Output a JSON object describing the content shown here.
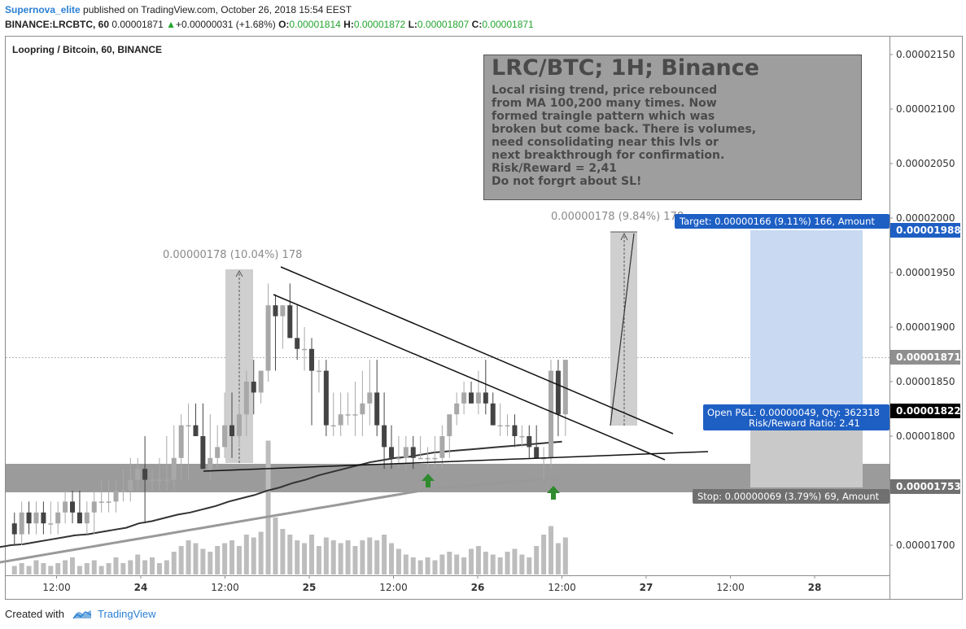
{
  "header": {
    "author": "Supernova_elite",
    "published": " published on TradingView.com, October 26, 2018 15:54 EEST",
    "symbol": "BINANCE:LRCBTC, 60",
    "last": " 0.00001871 ",
    "change_arrow": "▲",
    "change": "+0.00000031 (+1.68%)",
    "o_label": " O:",
    "o": "0.00001814",
    "h_label": " H:",
    "h": "0.00001872",
    "l_label": " L:",
    "l": "0.00001807",
    "c_label": " C:",
    "c": "0.00001871"
  },
  "legend": "Loopring / Bitcoin, 60, BINANCE",
  "note": {
    "title": "LRC/BTC; 1H; Binance",
    "lines": [
      "Local rising trend, price rebounced",
      "from MA 100,200 many times. Now",
      "formed traingle pattern which was",
      "broken but come back. There is volumes,",
      "need consolidating near this lvls or",
      "next breakthrough for confirmation.",
      "Risk/Reward = 2,41",
      "Do not forgrt about SL!"
    ]
  },
  "labels": {
    "measure1": "0.00000178 (10.04%) 178",
    "measure2": "0.00000178 (9.84%) 178",
    "target": "Target: 0.00000166 (9.11%) 166, Amount",
    "pnl1": "Open P&L: 0.00000049, Qty: 362318",
    "pnl2": "Risk/Reward Ratio: 2.41",
    "stop": "Stop: 0.00000069 (3.79%) 69, Amount"
  },
  "price_tags": {
    "target": "0.00001988",
    "last": "0.00001871",
    "entry": "0.00001822",
    "stop": "0.00001753"
  },
  "footer": {
    "created": "Created with",
    "brand": "TradingView"
  },
  "colors": {
    "up_candle": "#a8a8a8",
    "down_candle": "#444444",
    "ma100": "#333333",
    "ma200": "#999999",
    "support_zone": "#7a7a7a",
    "target_zone": "#c8d9f1",
    "stop_zone": "#c9c9c9",
    "target_tag": "#1e5fc4",
    "stop_tag": "#707070",
    "change_up": "#23a52e",
    "author": "#2a7fd4"
  },
  "chart_data": {
    "type": "candlestick",
    "title": "Loopring / Bitcoin, 60, BINANCE",
    "y_ticks": [
      "0.00002150",
      "0.00002100",
      "0.00002050",
      "0.00002000",
      "0.00001950",
      "0.00001900",
      "0.00001850",
      "0.00001800",
      "0.00001750",
      "0.00001700"
    ],
    "y_tick_values": [
      2.15e-05,
      2.1e-05,
      2.05e-05,
      2e-05,
      1.95e-05,
      1.9e-05,
      1.85e-05,
      1.8e-05,
      1.75e-05,
      1.7e-05
    ],
    "x_ticks": [
      "12:00",
      "24",
      "12:00",
      "25",
      "12:00",
      "26",
      "12:00",
      "27",
      "12:00",
      "28"
    ],
    "x_tick_hours": [
      12,
      24,
      36,
      48,
      60,
      72,
      84,
      96,
      108,
      120
    ],
    "ylim": [
      1.675e-05,
      2.18e-05
    ],
    "xlim": [
      5,
      130
    ],
    "x_unit": "hours since Oct 23 00:00",
    "open": [
      1.72e-05,
      1.71e-05,
      1.73e-05,
      1.72e-05,
      1.73e-05,
      1.72e-05,
      1.72e-05,
      1.73e-05,
      1.74e-05,
      1.73e-05,
      1.72e-05,
      1.73e-05,
      1.74e-05,
      1.74e-05,
      1.74e-05,
      1.75e-05,
      1.75e-05,
      1.76e-05,
      1.77e-05,
      1.76e-05,
      1.76e-05,
      1.76e-05,
      1.76e-05,
      1.78e-05,
      1.81e-05,
      1.81e-05,
      1.8e-05,
      1.77e-05,
      1.78e-05,
      1.79e-05,
      1.81e-05,
      1.8e-05,
      1.82e-05,
      1.85e-05,
      1.84e-05,
      1.86e-05,
      1.92e-05,
      1.91e-05,
      1.92e-05,
      1.89e-05,
      1.88e-05,
      1.88e-05,
      1.86e-05,
      1.86e-05,
      1.81e-05,
      1.81e-05,
      1.82e-05,
      1.82e-05,
      1.82e-05,
      1.83e-05,
      1.84e-05,
      1.81e-05,
      1.79e-05,
      1.78e-05,
      1.78e-05,
      1.79e-05,
      1.78e-05,
      1.78e-05,
      1.78e-05,
      1.78e-05,
      1.8e-05,
      1.82e-05,
      1.83e-05,
      1.84e-05,
      1.83e-05,
      1.84e-05,
      1.83e-05,
      1.81e-05,
      1.81e-05,
      1.81e-05,
      1.8e-05,
      1.8e-05,
      1.79e-05,
      1.78e-05,
      1.78e-05,
      1.86e-05,
      1.82e-05
    ],
    "high": [
      1.73e-05,
      1.74e-05,
      1.74e-05,
      1.74e-05,
      1.74e-05,
      1.74e-05,
      1.74e-05,
      1.75e-05,
      1.75e-05,
      1.75e-05,
      1.74e-05,
      1.75e-05,
      1.76e-05,
      1.76e-05,
      1.76e-05,
      1.77e-05,
      1.78e-05,
      1.78e-05,
      1.8e-05,
      1.77e-05,
      1.78e-05,
      1.8e-05,
      1.81e-05,
      1.82e-05,
      1.83e-05,
      1.83e-05,
      1.83e-05,
      1.82e-05,
      1.81e-05,
      1.84e-05,
      1.84e-05,
      1.83e-05,
      1.86e-05,
      1.87e-05,
      1.86e-05,
      1.94e-05,
      1.93e-05,
      1.92e-05,
      1.94e-05,
      1.92e-05,
      1.9e-05,
      1.89e-05,
      1.87e-05,
      1.87e-05,
      1.84e-05,
      1.84e-05,
      1.84e-05,
      1.85e-05,
      1.86e-05,
      1.87e-05,
      1.87e-05,
      1.84e-05,
      1.81e-05,
      1.8e-05,
      1.8e-05,
      1.8e-05,
      1.8e-05,
      1.79e-05,
      1.8e-05,
      1.81e-05,
      1.82e-05,
      1.84e-05,
      1.85e-05,
      1.85e-05,
      1.86e-05,
      1.87e-05,
      1.84e-05,
      1.83e-05,
      1.82e-05,
      1.82e-05,
      1.81e-05,
      1.81e-05,
      1.81e-05,
      1.79e-05,
      1.87e-05,
      1.87e-05,
      1.87e-05
    ],
    "low": [
      1.7e-05,
      1.7e-05,
      1.71e-05,
      1.71e-05,
      1.71e-05,
      1.71e-05,
      1.71e-05,
      1.72e-05,
      1.72e-05,
      1.72e-05,
      1.71e-05,
      1.71e-05,
      1.73e-05,
      1.73e-05,
      1.73e-05,
      1.74e-05,
      1.74e-05,
      1.75e-05,
      1.72e-05,
      1.75e-05,
      1.75e-05,
      1.75e-05,
      1.75e-05,
      1.76e-05,
      1.76e-05,
      1.8e-05,
      1.77e-05,
      1.76e-05,
      1.77e-05,
      1.78e-05,
      1.78e-05,
      1.79e-05,
      1.8e-05,
      1.82e-05,
      1.83e-05,
      1.85e-05,
      1.86e-05,
      1.88e-05,
      1.89e-05,
      1.87e-05,
      1.86e-05,
      1.81e-05,
      1.84e-05,
      1.8e-05,
      1.8e-05,
      1.8e-05,
      1.81e-05,
      1.8e-05,
      1.8e-05,
      1.81e-05,
      1.8e-05,
      1.77e-05,
      1.77e-05,
      1.77e-05,
      1.77e-05,
      1.77e-05,
      1.78e-05,
      1.77e-05,
      1.77e-05,
      1.77e-05,
      1.78e-05,
      1.81e-05,
      1.82e-05,
      1.83e-05,
      1.82e-05,
      1.82e-05,
      1.81e-05,
      1.8e-05,
      1.8e-05,
      1.79e-05,
      1.79e-05,
      1.78e-05,
      1.78e-05,
      1.76e-05,
      1.77e-05,
      1.8e-05,
      1.8e-05
    ],
    "close": [
      1.71e-05,
      1.73e-05,
      1.72e-05,
      1.73e-05,
      1.72e-05,
      1.72e-05,
      1.73e-05,
      1.74e-05,
      1.73e-05,
      1.72e-05,
      1.73e-05,
      1.74e-05,
      1.74e-05,
      1.74e-05,
      1.75e-05,
      1.75e-05,
      1.76e-05,
      1.77e-05,
      1.76e-05,
      1.76e-05,
      1.76e-05,
      1.76e-05,
      1.78e-05,
      1.81e-05,
      1.81e-05,
      1.8e-05,
      1.77e-05,
      1.78e-05,
      1.79e-05,
      1.81e-05,
      1.8e-05,
      1.82e-05,
      1.85e-05,
      1.84e-05,
      1.86e-05,
      1.92e-05,
      1.91e-05,
      1.92e-05,
      1.89e-05,
      1.88e-05,
      1.88e-05,
      1.86e-05,
      1.86e-05,
      1.81e-05,
      1.81e-05,
      1.82e-05,
      1.82e-05,
      1.82e-05,
      1.83e-05,
      1.84e-05,
      1.81e-05,
      1.79e-05,
      1.78e-05,
      1.78e-05,
      1.79e-05,
      1.78e-05,
      1.78e-05,
      1.78e-05,
      1.78e-05,
      1.8e-05,
      1.82e-05,
      1.83e-05,
      1.84e-05,
      1.83e-05,
      1.84e-05,
      1.83e-05,
      1.81e-05,
      1.81e-05,
      1.81e-05,
      1.8e-05,
      1.8e-05,
      1.79e-05,
      1.78e-05,
      1.78e-05,
      1.86e-05,
      1.82e-05,
      1.87e-05
    ],
    "volume": [
      3,
      4,
      3,
      5,
      4,
      3,
      4,
      5,
      6,
      3,
      4,
      5,
      3,
      4,
      6,
      4,
      5,
      7,
      5,
      6,
      4,
      5,
      8,
      10,
      12,
      11,
      9,
      8,
      10,
      11,
      12,
      10,
      14,
      13,
      15,
      47,
      20,
      16,
      14,
      12,
      11,
      14,
      10,
      13,
      12,
      11,
      12,
      10,
      12,
      13,
      12,
      14,
      11,
      9,
      7,
      6,
      5,
      6,
      5,
      7,
      8,
      7,
      6,
      9,
      10,
      8,
      7,
      6,
      8,
      9,
      7,
      6,
      10,
      14,
      17,
      11,
      13
    ],
    "ma100": [
      1.69e-05,
      1.695e-05,
      1.698e-05,
      1.7e-05,
      1.701e-05,
      1.703e-05,
      1.705e-05,
      1.707e-05,
      1.709e-05,
      1.71e-05,
      1.712e-05,
      1.714e-05,
      1.716e-05,
      1.72e-05,
      1.722e-05,
      1.725e-05,
      1.728e-05,
      1.73e-05,
      1.733e-05,
      1.736e-05,
      1.74e-05,
      1.743e-05,
      1.746e-05,
      1.75e-05,
      1.753e-05,
      1.757e-05,
      1.76e-05,
      1.764e-05,
      1.767e-05,
      1.77e-05,
      1.773e-05,
      1.776e-05,
      1.778e-05,
      1.78e-05,
      1.781e-05,
      1.783e-05,
      1.785e-05,
      1.786e-05,
      1.787e-05,
      1.788e-05,
      1.789e-05,
      1.79e-05,
      1.791e-05,
      1.792e-05,
      1.793e-05,
      1.794e-05,
      1.795e-05
    ],
    "ma200": [
      1.68e-05,
      1.682e-05,
      1.684e-05,
      1.686e-05,
      1.688e-05,
      1.69e-05,
      1.692e-05,
      1.694e-05,
      1.696e-05,
      1.698e-05,
      1.7e-05,
      1.702e-05,
      1.704e-05,
      1.706e-05,
      1.708e-05,
      1.71e-05,
      1.712e-05,
      1.714e-05,
      1.716e-05,
      1.718e-05,
      1.72e-05,
      1.722e-05,
      1.724e-05,
      1.726e-05,
      1.728e-05,
      1.73e-05,
      1.732e-05,
      1.734e-05,
      1.736e-05,
      1.738e-05,
      1.74e-05,
      1.742e-05,
      1.744e-05,
      1.746e-05,
      1.748e-05,
      1.75e-05,
      1.752e-05,
      1.753e-05,
      1.754e-05,
      1.755e-05,
      1.756e-05,
      1.757e-05,
      1.758e-05,
      1.759e-05,
      1.76e-05,
      1.761e-05,
      1.762e-05
    ],
    "levels": {
      "target": 1.988e-05,
      "last": 1.871e-05,
      "entry": 1.822e-05,
      "stop": 1.753e-05,
      "support_zone": [
        1.753e-05,
        1.778e-05
      ]
    }
  }
}
